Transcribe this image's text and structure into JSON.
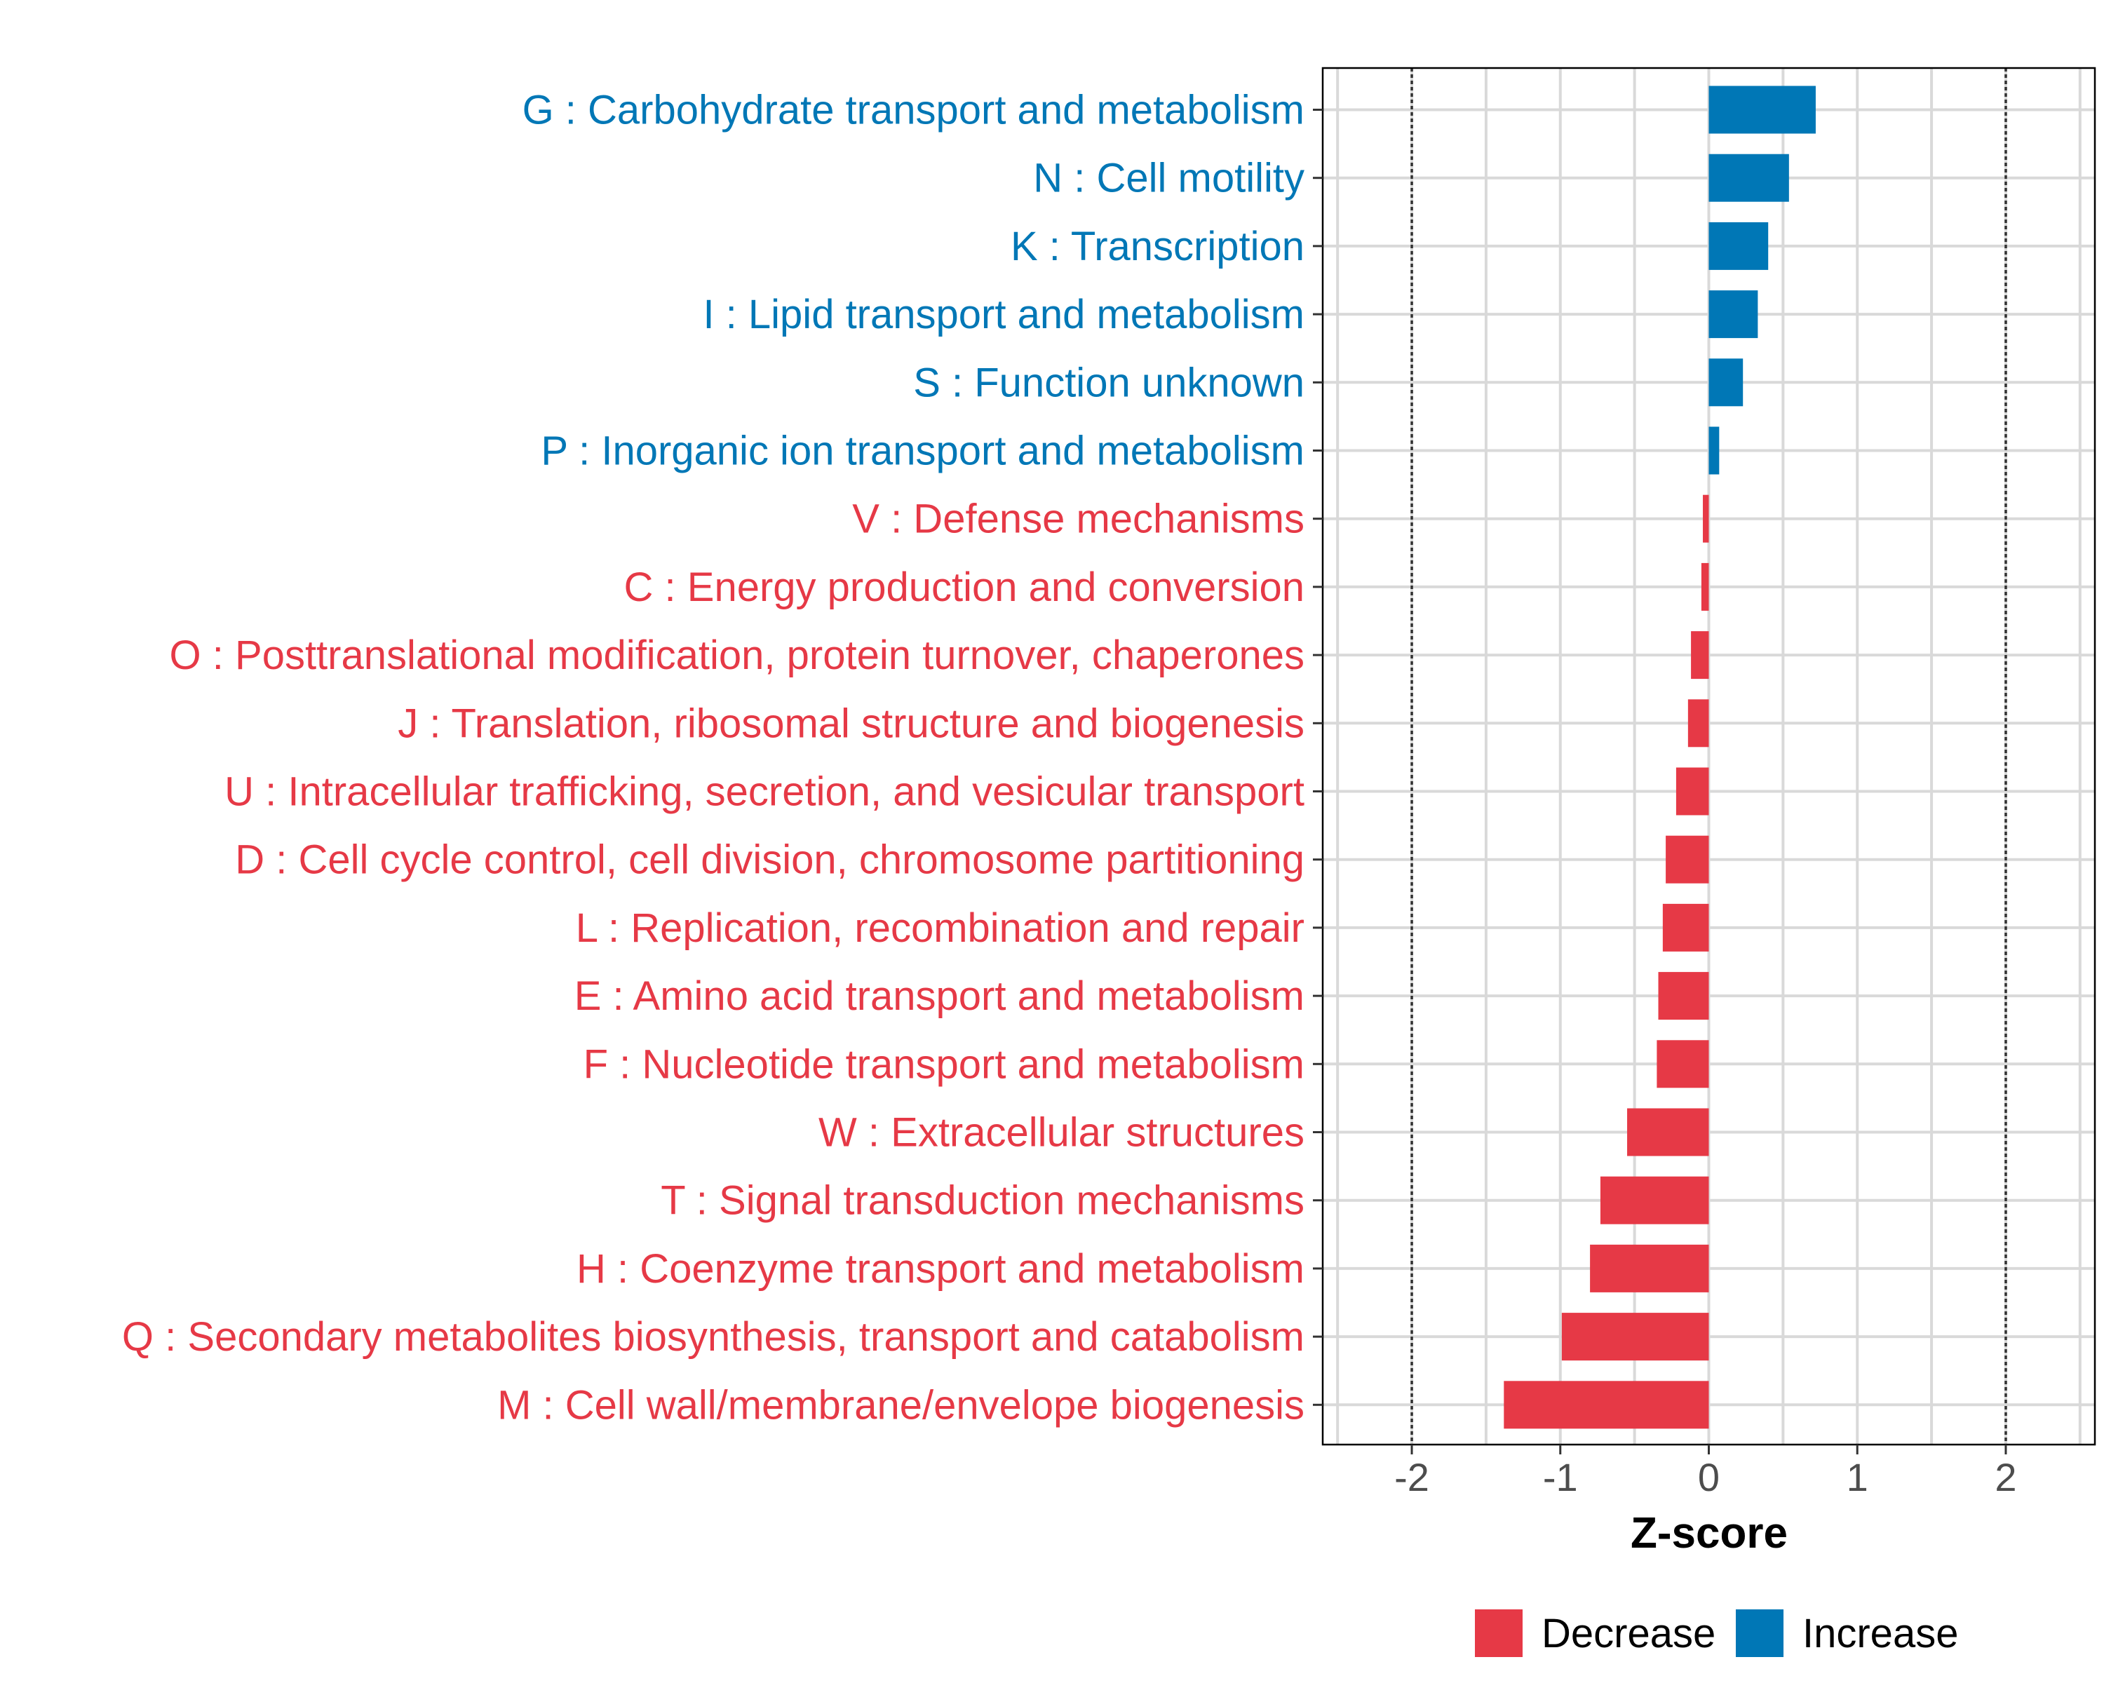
{
  "chart_data": {
    "type": "bar",
    "orientation": "horizontal",
    "xlabel": "Z-score",
    "ylabel": "",
    "xlim": [
      -2.6,
      2.6
    ],
    "xticks": [
      -2,
      -1,
      0,
      1,
      2
    ],
    "xtick_labels": [
      "-2",
      "-1",
      "0",
      "1",
      "2"
    ],
    "reference_lines": [
      -2,
      2
    ],
    "grid": true,
    "legend": {
      "position": "bottom",
      "entries": [
        {
          "label": "Decrease",
          "color": "#E63946"
        },
        {
          "label": "Increase",
          "color": "#0077B6"
        }
      ]
    },
    "categories": [
      "G : Carbohydrate transport and metabolism",
      "N : Cell motility",
      "K : Transcription",
      "I : Lipid transport and metabolism",
      "S : Function unknown",
      "P : Inorganic ion transport and metabolism",
      "V : Defense mechanisms",
      "C : Energy production and conversion",
      "O : Posttranslational modification, protein turnover, chaperones",
      "J : Translation, ribosomal structure and biogenesis",
      "U : Intracellular trafficking, secretion, and vesicular transport",
      "D : Cell cycle control, cell division, chromosome partitioning",
      "L : Replication, recombination and repair",
      "E : Amino acid transport and metabolism",
      "F : Nucleotide transport and metabolism",
      "W : Extracellular structures",
      "T : Signal transduction mechanisms",
      "H : Coenzyme transport and metabolism",
      "Q : Secondary metabolites biosynthesis, transport and catabolism",
      "M : Cell wall/membrane/envelope biogenesis"
    ],
    "values": [
      0.72,
      0.54,
      0.4,
      0.33,
      0.23,
      0.07,
      -0.04,
      -0.05,
      -0.12,
      -0.14,
      -0.22,
      -0.29,
      -0.31,
      -0.34,
      -0.35,
      -0.55,
      -0.73,
      -0.8,
      -0.99,
      -1.38
    ],
    "groups": [
      "Increase",
      "Increase",
      "Increase",
      "Increase",
      "Increase",
      "Increase",
      "Decrease",
      "Decrease",
      "Decrease",
      "Decrease",
      "Decrease",
      "Decrease",
      "Decrease",
      "Decrease",
      "Decrease",
      "Decrease",
      "Decrease",
      "Decrease",
      "Decrease",
      "Decrease"
    ]
  }
}
